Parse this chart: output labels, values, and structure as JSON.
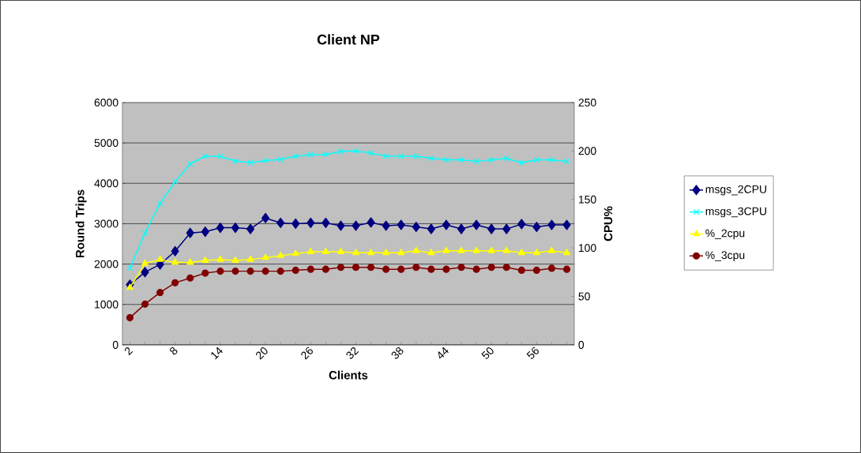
{
  "chart_data": {
    "type": "line",
    "title": "Client NP",
    "xlabel": "Clients",
    "ylabel": "Round Trips",
    "y2label": "CPU%",
    "categories": [
      "2",
      null,
      null,
      "8",
      null,
      null,
      "14",
      null,
      null,
      "20",
      null,
      null,
      "26",
      null,
      null,
      "32",
      null,
      null,
      "38",
      null,
      null,
      "44",
      null,
      null,
      "50",
      null,
      null,
      "56",
      null,
      null
    ],
    "ylim": [
      0,
      6000
    ],
    "yticks": [
      0,
      1000,
      2000,
      3000,
      4000,
      5000,
      6000
    ],
    "y2lim": [
      0,
      250
    ],
    "y2ticks": [
      0,
      50,
      100,
      150,
      200,
      250
    ],
    "grid": "y",
    "legend": "right",
    "series": [
      {
        "name": "msgs_2CPU",
        "color": "#000080",
        "marker": "diamond",
        "values": [
          1490,
          1800,
          1990,
          2320,
          2770,
          2800,
          2900,
          2900,
          2870,
          3140,
          3020,
          3000,
          3020,
          3020,
          2950,
          2950,
          3030,
          2950,
          2970,
          2920,
          2870,
          2970,
          2870,
          2970,
          2870,
          2870,
          2990,
          2920,
          2970,
          2970
        ]
      },
      {
        "name": "msgs_3CPU",
        "color": "#00ffff",
        "marker": "cross",
        "values": [
          1900,
          2770,
          3500,
          4040,
          4480,
          4670,
          4670,
          4550,
          4510,
          4560,
          4590,
          4670,
          4710,
          4710,
          4790,
          4800,
          4750,
          4670,
          4670,
          4670,
          4620,
          4580,
          4580,
          4540,
          4580,
          4620,
          4510,
          4580,
          4580,
          4540
        ]
      },
      {
        "name": "%_2cpu",
        "color": "#ffff00",
        "marker": "triangle",
        "axis": "y2",
        "values": [
          59,
          84,
          88,
          85,
          85,
          87,
          88,
          87,
          88,
          90,
          92,
          94,
          96,
          96,
          96,
          95,
          95,
          95,
          95,
          97,
          95,
          97,
          97,
          97,
          97,
          97,
          95,
          95,
          97,
          95
        ]
      },
      {
        "name": "%_3cpu",
        "color": "#800000",
        "marker": "circle",
        "axis": "y2",
        "values": [
          28,
          42,
          54,
          64,
          69,
          74,
          76,
          76,
          76,
          76,
          76,
          77,
          78,
          78,
          80,
          80,
          80,
          78,
          78,
          80,
          78,
          78,
          80,
          78,
          80,
          80,
          77,
          77,
          79,
          78
        ]
      }
    ]
  }
}
